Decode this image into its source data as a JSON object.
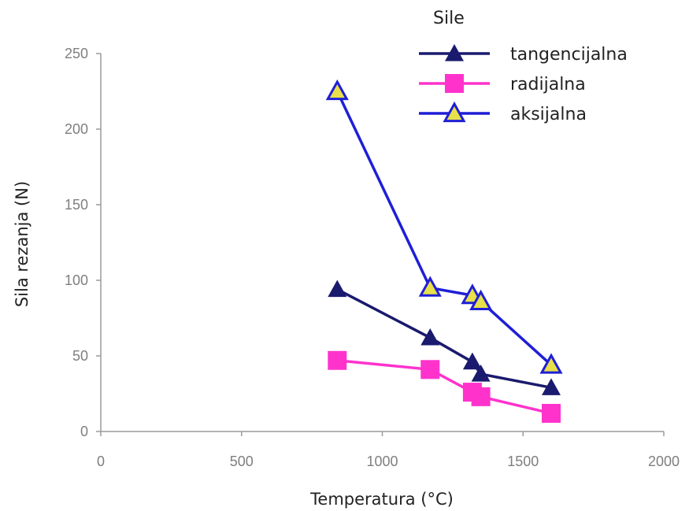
{
  "chart_data": {
    "type": "line",
    "xlabel": "Temperatura (°C)",
    "ylabel": "Sila rezanja (N)",
    "xlim": [
      0,
      2000
    ],
    "ylim": [
      0,
      250
    ],
    "xticks": [
      0,
      500,
      1000,
      1500,
      2000
    ],
    "yticks": [
      0,
      50,
      100,
      150,
      200,
      250
    ],
    "x_tick_labels": [
      "0",
      "500",
      "1000",
      "1500",
      "2000"
    ],
    "y_tick_labels": [
      "0",
      "50",
      "100",
      "150",
      "200",
      "250"
    ],
    "grid": false,
    "legend_title": "Sile",
    "legend_position": "top-right",
    "series": [
      {
        "name": "tangencijalna",
        "color": "#1a1a6e",
        "marker": "triangle-filled",
        "x": [
          840,
          1170,
          1320,
          1350,
          1600
        ],
        "y": [
          94,
          62,
          46,
          38,
          29
        ]
      },
      {
        "name": "radijalna",
        "color": "#ff33cc",
        "marker": "square",
        "x": [
          840,
          1170,
          1320,
          1350,
          1600
        ],
        "y": [
          47,
          41,
          26,
          23,
          12
        ]
      },
      {
        "name": "aksijalna",
        "color": "#1f1fd6",
        "marker": "triangle-open-yellow",
        "x": [
          840,
          1170,
          1320,
          1350,
          1600
        ],
        "y": [
          225,
          95,
          90,
          86,
          44
        ]
      }
    ]
  }
}
